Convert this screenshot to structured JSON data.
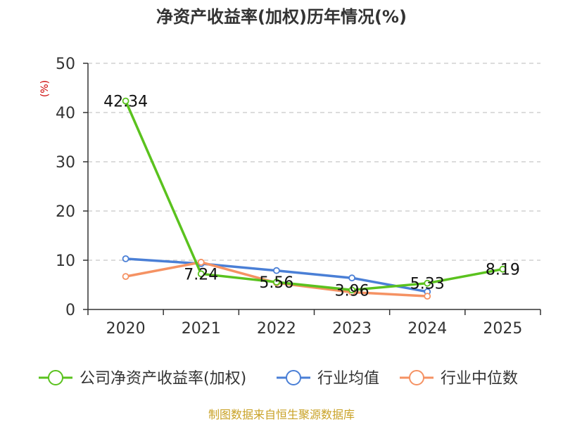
{
  "chart_data": {
    "type": "line",
    "title": "净资产收益率(加权)历年情况(%)",
    "ylabel": "(%)",
    "xlabel": "",
    "ylim": [
      0,
      50
    ],
    "yticks": [
      0,
      10,
      20,
      30,
      40,
      50
    ],
    "categories": [
      "2020",
      "2021",
      "2022",
      "2023",
      "2024",
      "2025"
    ],
    "series": [
      {
        "name": "公司净资产收益率(加权)",
        "color": "#5ac21e",
        "values": [
          42.34,
          7.24,
          5.56,
          3.96,
          5.33,
          8.19
        ],
        "labels": [
          "42.34",
          "7.24",
          "5.56",
          "3.96",
          "5.33",
          "8.19"
        ]
      },
      {
        "name": "行业均值",
        "color": "#4a7fd6",
        "values": [
          10.3,
          9.3,
          7.9,
          6.4,
          3.6,
          null
        ]
      },
      {
        "name": "行业中位数",
        "color": "#f59263",
        "values": [
          6.7,
          9.6,
          5.4,
          3.5,
          2.7,
          null
        ]
      }
    ],
    "grid": true,
    "legend": "bottom"
  },
  "source_note": "制图数据来自恒生聚源数据库"
}
